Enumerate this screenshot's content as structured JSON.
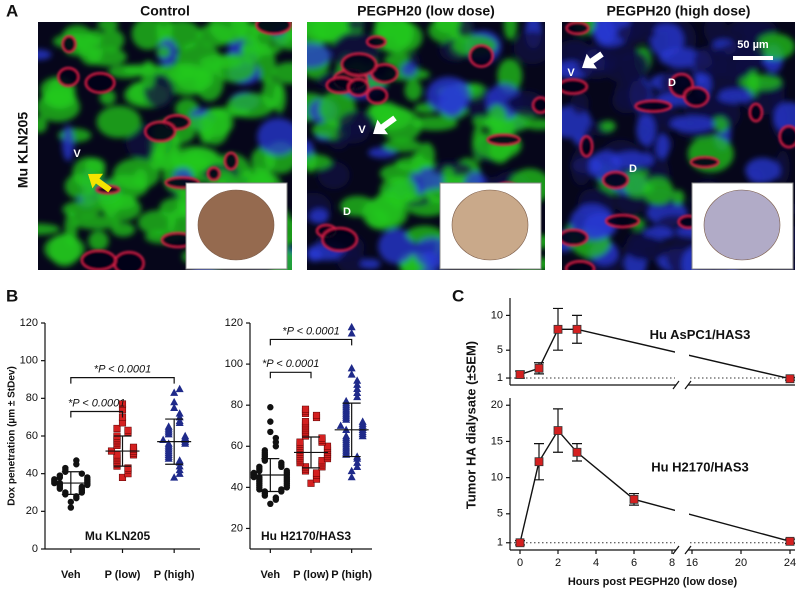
{
  "panel_a": {
    "label": "A",
    "row_label": "Mu KLN205",
    "scale_bar": "50 µm",
    "images": [
      {
        "title": "Control",
        "labels": [
          "V"
        ]
      },
      {
        "title": "PEGPH20 (low dose)",
        "labels": [
          "V",
          "D"
        ]
      },
      {
        "title": "PEGPH20 (high dose)",
        "labels": [
          "V",
          "D",
          "D"
        ]
      }
    ]
  },
  "panel_b_label": "B",
  "panel_c_label": "C",
  "chart_data": [
    {
      "type": "dot",
      "subtitle": "Mu KLN205",
      "ylabel": "Dox penetration (µm ± StDev)",
      "categories": [
        "Veh",
        "P (low)",
        "P (high)"
      ],
      "ylim": [
        0,
        120
      ],
      "yticks": [
        0,
        20,
        40,
        60,
        80,
        100,
        120
      ],
      "groups": [
        {
          "color": "#111111",
          "marker": "circle",
          "mean": 35,
          "sd": 6,
          "values": [
            22,
            25,
            27,
            28,
            29,
            30,
            30,
            31,
            32,
            32,
            33,
            33,
            34,
            34,
            35,
            35,
            35,
            36,
            36,
            37,
            37,
            38,
            38,
            39,
            40,
            41,
            42,
            43,
            45,
            47
          ]
        },
        {
          "color": "#d42020",
          "marker": "square",
          "mean": 52,
          "sd": 8,
          "values": [
            38,
            40,
            42,
            43,
            44,
            45,
            46,
            47,
            48,
            49,
            50,
            50,
            51,
            52,
            52,
            53,
            54,
            55,
            56,
            57,
            58,
            59,
            60,
            62,
            63,
            64,
            67,
            70,
            74,
            77
          ]
        },
        {
          "color": "#1f2a8a",
          "marker": "triangle",
          "mean": 57,
          "sd": 12,
          "values": [
            38,
            40,
            42,
            44,
            46,
            47,
            48,
            49,
            50,
            51,
            52,
            53,
            54,
            55,
            56,
            56,
            57,
            58,
            58,
            59,
            60,
            61,
            62,
            63,
            64,
            65,
            67,
            68,
            70,
            72,
            75,
            78,
            83,
            85
          ]
        }
      ],
      "annotations": [
        {
          "text": "*P < 0.0001",
          "between": [
            0,
            1
          ],
          "y": 73
        },
        {
          "text": "*P < 0.0001",
          "between": [
            0,
            2
          ],
          "y": 91
        }
      ]
    },
    {
      "type": "dot",
      "subtitle": "Hu H2170/HAS3",
      "categories": [
        "Veh",
        "P (low)",
        "P (high)"
      ],
      "ylim": [
        10,
        120
      ],
      "yticks": [
        20,
        40,
        60,
        80,
        100,
        120
      ],
      "groups": [
        {
          "color": "#111111",
          "marker": "circle",
          "mean": 46,
          "sd": 8,
          "values": [
            32,
            34,
            35,
            36,
            37,
            38,
            38,
            39,
            39,
            40,
            40,
            41,
            41,
            42,
            42,
            43,
            43,
            44,
            44,
            45,
            45,
            45,
            46,
            46,
            47,
            47,
            48,
            48,
            49,
            50,
            50,
            51,
            52,
            53,
            54,
            55,
            56,
            57,
            58,
            60,
            62,
            64,
            67,
            72,
            79
          ]
        },
        {
          "color": "#d42020",
          "marker": "square",
          "mean": 57,
          "sd": 7.5,
          "values": [
            42,
            44,
            46,
            47,
            48,
            49,
            50,
            50,
            51,
            52,
            52,
            53,
            53,
            54,
            54,
            55,
            55,
            56,
            56,
            57,
            57,
            58,
            58,
            59,
            59,
            60,
            60,
            61,
            62,
            62,
            63,
            64,
            65,
            66,
            67,
            68,
            69,
            70,
            71,
            72,
            74,
            75,
            76,
            77,
            78
          ]
        },
        {
          "color": "#1f2a8a",
          "marker": "triangle",
          "mean": 68,
          "sd": 13,
          "values": [
            45,
            48,
            50,
            52,
            54,
            55,
            56,
            57,
            58,
            59,
            60,
            61,
            62,
            63,
            64,
            65,
            65,
            66,
            67,
            68,
            68,
            69,
            70,
            70,
            71,
            72,
            73,
            74,
            75,
            76,
            77,
            78,
            79,
            80,
            81,
            82,
            84,
            86,
            88,
            90,
            92,
            95,
            98,
            115,
            118
          ]
        }
      ],
      "annotations": [
        {
          "text": "*P < 0.0001",
          "between": [
            0,
            1
          ],
          "y": 96
        },
        {
          "text": "*P < 0.0001",
          "between": [
            0,
            2
          ],
          "y": 112
        }
      ]
    },
    {
      "type": "line",
      "subtitle": "Hu AsPC1/HAS3",
      "ylabel": "Tumor HA dialysate (±SEM)",
      "x": [
        0,
        1,
        2,
        3,
        24
      ],
      "values": [
        1.5,
        2.4,
        8,
        8,
        0.9
      ],
      "errors": [
        0.5,
        0.8,
        3,
        2,
        0.2
      ],
      "color": "#d42020",
      "ylim": [
        0,
        12.5
      ],
      "yticks": [
        1,
        5,
        10
      ],
      "refline": 1,
      "xsegments": [
        [
          0,
          8
        ],
        [
          16,
          24
        ]
      ]
    },
    {
      "type": "line",
      "subtitle": "Hu H2170/HAS3",
      "xlabel": "Hours post PEGPH20 (low dose)",
      "x": [
        0,
        1,
        2,
        3,
        6,
        24
      ],
      "values": [
        1,
        12.2,
        16.5,
        13.5,
        7,
        1.2
      ],
      "errors": [
        0.3,
        2.5,
        3,
        1.2,
        0.8,
        0.3
      ],
      "color": "#d42020",
      "ylim": [
        0,
        21
      ],
      "yticks": [
        1,
        5,
        10,
        15,
        20
      ],
      "refline": 1,
      "xsegments": [
        [
          0,
          8
        ],
        [
          16,
          24
        ]
      ],
      "xticks": [
        0,
        2,
        4,
        6,
        8,
        16,
        20,
        24
      ]
    }
  ]
}
